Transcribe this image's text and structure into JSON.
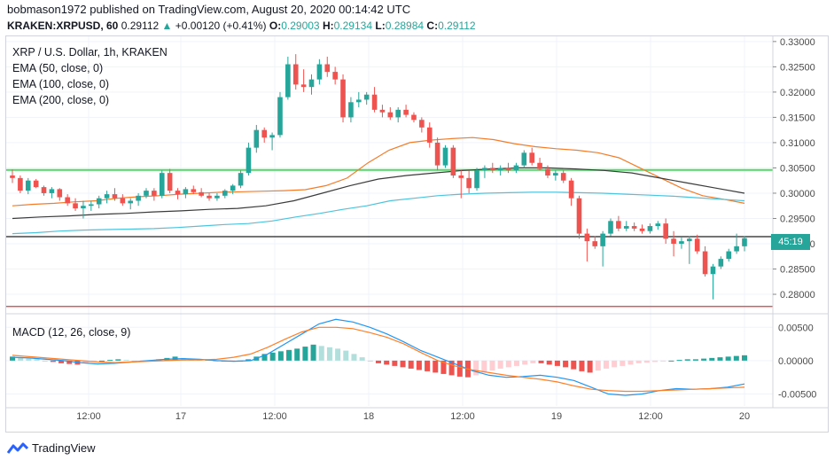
{
  "header": {
    "publisher_line": "bobmason1972 published on TradingView.com, August 20, 2020 00:14:42 UTC",
    "symbol": "KRAKEN:XRPUSD, 60",
    "last": "0.29112",
    "change_arrow": "▲",
    "change": "+0.00120 (+0.41%)",
    "o_label": "O:",
    "o": "0.29003",
    "h_label": "H:",
    "h": "0.29134",
    "l_label": "L:",
    "l": "0.28984",
    "c_label": "C:",
    "c": "0.29112"
  },
  "legend": {
    "title": "XRP / U.S. Dollar, 1h, KRAKEN",
    "ema50": "EMA (50, close, 0)",
    "ema100": "EMA (100, close, 0)",
    "ema200": "EMA (200, close, 0)"
  },
  "macd_legend": "MACD (12, 26, close, 9)",
  "price_tag": "45:19",
  "footer": {
    "brand": "TradingView"
  },
  "colors": {
    "up": "#26a69a",
    "down": "#ef5350",
    "ema50": "#f57c2a",
    "ema100": "#4dc3dc",
    "ema200": "#3b3b3b",
    "support_green": "#4cd964",
    "resistance_red": "#e53935",
    "current_line": "#222222",
    "macd_line": "#2196f3",
    "signal_line": "#ff7f27",
    "hist_up_strong": "#26a69a",
    "hist_up_weak": "#b2dfdb",
    "hist_down_strong": "#ef5350",
    "hist_down_weak": "#ffcdd2"
  },
  "chart_data": [
    {
      "type": "candlestick",
      "title": "XRP / U.S. Dollar, 1h, KRAKEN",
      "x_ticks": [
        "12:00",
        "17",
        "12:00",
        "18",
        "12:00",
        "19",
        "12:00",
        "20"
      ],
      "y_ticks": [
        "0.33000",
        "0.32500",
        "0.32000",
        "0.31500",
        "0.31000",
        "0.30500",
        "0.30000",
        "0.29500",
        "0.29000",
        "0.28500",
        "0.28000"
      ],
      "ylim": [
        0.2765,
        0.3305
      ],
      "horizontal_lines": [
        {
          "name": "support",
          "value": 0.3046,
          "color": "green"
        },
        {
          "name": "current",
          "value": 0.2914,
          "color": "black"
        },
        {
          "name": "lower",
          "value": 0.2776,
          "color": "red"
        }
      ],
      "candles": [
        [
          0.3035,
          0.3047,
          0.302,
          0.303
        ],
        [
          0.303,
          0.3035,
          0.3,
          0.3005
        ],
        [
          0.3005,
          0.303,
          0.2998,
          0.3025
        ],
        [
          0.3025,
          0.3028,
          0.301,
          0.3012
        ],
        [
          0.3012,
          0.3015,
          0.2995,
          0.3
        ],
        [
          0.3,
          0.3012,
          0.299,
          0.3008
        ],
        [
          0.3008,
          0.301,
          0.2985,
          0.2992
        ],
        [
          0.2992,
          0.2998,
          0.2975,
          0.298
        ],
        [
          0.298,
          0.299,
          0.2965,
          0.297
        ],
        [
          0.297,
          0.2985,
          0.295,
          0.2975
        ],
        [
          0.2975,
          0.2985,
          0.2965,
          0.2978
        ],
        [
          0.2978,
          0.2995,
          0.297,
          0.299
        ],
        [
          0.299,
          0.3005,
          0.298,
          0.2998
        ],
        [
          0.2998,
          0.301,
          0.2985,
          0.299
        ],
        [
          0.299,
          0.2998,
          0.2975,
          0.298
        ],
        [
          0.298,
          0.299,
          0.2968,
          0.2985
        ],
        [
          0.2985,
          0.3,
          0.2975,
          0.2995
        ],
        [
          0.2995,
          0.301,
          0.299,
          0.3005
        ],
        [
          0.3005,
          0.301,
          0.2985,
          0.2995
        ],
        [
          0.2995,
          0.3045,
          0.299,
          0.304
        ],
        [
          0.304,
          0.3048,
          0.3,
          0.3005
        ],
        [
          0.3005,
          0.301,
          0.2988,
          0.2998
        ],
        [
          0.2998,
          0.3012,
          0.299,
          0.3008
        ],
        [
          0.3008,
          0.3015,
          0.2998,
          0.3002
        ],
        [
          0.3002,
          0.301,
          0.2992,
          0.2995
        ],
        [
          0.2995,
          0.3,
          0.2985,
          0.299
        ],
        [
          0.299,
          0.3,
          0.2985,
          0.2995
        ],
        [
          0.2995,
          0.3008,
          0.299,
          0.3005
        ],
        [
          0.3005,
          0.3018,
          0.2998,
          0.3015
        ],
        [
          0.3015,
          0.3045,
          0.301,
          0.304
        ],
        [
          0.304,
          0.31,
          0.3035,
          0.309
        ],
        [
          0.309,
          0.3135,
          0.308,
          0.3125
        ],
        [
          0.3125,
          0.313,
          0.31,
          0.311
        ],
        [
          0.311,
          0.312,
          0.3085,
          0.3115
        ],
        [
          0.3115,
          0.32,
          0.311,
          0.319
        ],
        [
          0.319,
          0.327,
          0.3185,
          0.3255
        ],
        [
          0.3255,
          0.3275,
          0.3205,
          0.3215
        ],
        [
          0.3215,
          0.3245,
          0.32,
          0.321
        ],
        [
          0.321,
          0.3235,
          0.3195,
          0.3225
        ],
        [
          0.3225,
          0.3265,
          0.3215,
          0.3255
        ],
        [
          0.3255,
          0.327,
          0.323,
          0.324
        ],
        [
          0.324,
          0.325,
          0.3215,
          0.3225
        ],
        [
          0.3225,
          0.3235,
          0.314,
          0.315
        ],
        [
          0.315,
          0.319,
          0.314,
          0.318
        ],
        [
          0.318,
          0.32,
          0.317,
          0.3185
        ],
        [
          0.3185,
          0.32,
          0.3175,
          0.3195
        ],
        [
          0.3195,
          0.321,
          0.316,
          0.3165
        ],
        [
          0.3165,
          0.3175,
          0.315,
          0.316
        ],
        [
          0.316,
          0.317,
          0.3145,
          0.315
        ],
        [
          0.315,
          0.317,
          0.314,
          0.3165
        ],
        [
          0.3165,
          0.3175,
          0.315,
          0.3155
        ],
        [
          0.3155,
          0.316,
          0.314,
          0.3145
        ],
        [
          0.3145,
          0.315,
          0.312,
          0.313
        ],
        [
          0.313,
          0.314,
          0.309,
          0.31
        ],
        [
          0.31,
          0.311,
          0.3045,
          0.3055
        ],
        [
          0.3055,
          0.3095,
          0.305,
          0.309
        ],
        [
          0.309,
          0.3095,
          0.303,
          0.3035
        ],
        [
          0.3035,
          0.3045,
          0.299,
          0.303
        ],
        [
          0.303,
          0.3045,
          0.3,
          0.301
        ],
        [
          0.301,
          0.305,
          0.3005,
          0.3045
        ],
        [
          0.3045,
          0.3055,
          0.303,
          0.305
        ],
        [
          0.305,
          0.306,
          0.304,
          0.3045
        ],
        [
          0.3045,
          0.3055,
          0.3035,
          0.305
        ],
        [
          0.305,
          0.306,
          0.304,
          0.3045
        ],
        [
          0.3045,
          0.306,
          0.304,
          0.3055
        ],
        [
          0.3055,
          0.3085,
          0.305,
          0.308
        ],
        [
          0.308,
          0.309,
          0.3055,
          0.306
        ],
        [
          0.306,
          0.307,
          0.3045,
          0.3048
        ],
        [
          0.3048,
          0.3055,
          0.303,
          0.3035
        ],
        [
          0.3035,
          0.3045,
          0.3025,
          0.304
        ],
        [
          0.304,
          0.3045,
          0.302,
          0.3025
        ],
        [
          0.3025,
          0.303,
          0.2975,
          0.299
        ],
        [
          0.299,
          0.2995,
          0.291,
          0.292
        ],
        [
          0.292,
          0.293,
          0.2865,
          0.2905
        ],
        [
          0.2905,
          0.2915,
          0.289,
          0.2895
        ],
        [
          0.2895,
          0.2925,
          0.2855,
          0.292
        ],
        [
          0.292,
          0.295,
          0.2915,
          0.2945
        ],
        [
          0.2945,
          0.2955,
          0.2925,
          0.293
        ],
        [
          0.293,
          0.2945,
          0.2925,
          0.2935
        ],
        [
          0.2935,
          0.2942,
          0.2925,
          0.293
        ],
        [
          0.293,
          0.2938,
          0.292,
          0.2925
        ],
        [
          0.2925,
          0.294,
          0.292,
          0.2935
        ],
        [
          0.2935,
          0.2945,
          0.2928,
          0.294
        ],
        [
          0.294,
          0.295,
          0.29,
          0.291
        ],
        [
          0.291,
          0.2925,
          0.2875,
          0.29
        ],
        [
          0.29,
          0.2912,
          0.289,
          0.2905
        ],
        [
          0.2905,
          0.2915,
          0.286,
          0.291
        ],
        [
          0.291,
          0.2918,
          0.288,
          0.2885
        ],
        [
          0.2885,
          0.2895,
          0.2835,
          0.284
        ],
        [
          0.284,
          0.286,
          0.279,
          0.2855
        ],
        [
          0.2855,
          0.2875,
          0.285,
          0.287
        ],
        [
          0.287,
          0.289,
          0.2865,
          0.2885
        ],
        [
          0.2885,
          0.292,
          0.288,
          0.2895
        ],
        [
          0.2895,
          0.2915,
          0.2885,
          0.2911
        ]
      ],
      "series": [
        {
          "name": "EMA (50, close, 0)",
          "values": [
            0.2975,
            0.2978,
            0.298,
            0.2983,
            0.2985,
            0.299,
            0.2993,
            0.2995,
            0.2998,
            0.3,
            0.3002,
            0.3003,
            0.3004,
            0.3005,
            0.3007,
            0.3015,
            0.303,
            0.306,
            0.3085,
            0.31,
            0.3105,
            0.3108,
            0.311,
            0.3106,
            0.3098,
            0.3092,
            0.3088,
            0.3085,
            0.308,
            0.307,
            0.305,
            0.303,
            0.301,
            0.2995,
            0.2988,
            0.298
          ]
        },
        {
          "name": "EMA (100, close, 0)",
          "values": [
            0.292,
            0.2922,
            0.2925,
            0.2927,
            0.2928,
            0.2929,
            0.293,
            0.2932,
            0.2935,
            0.2938,
            0.294,
            0.2945,
            0.2953,
            0.296,
            0.2968,
            0.2975,
            0.2985,
            0.299,
            0.2995,
            0.2998,
            0.3,
            0.3001,
            0.3002,
            0.3002,
            0.3001,
            0.3,
            0.2998,
            0.2996,
            0.2994,
            0.2991,
            0.2988,
            0.2985
          ]
        },
        {
          "name": "EMA (200, close, 0)",
          "values": [
            0.295,
            0.2953,
            0.2955,
            0.2958,
            0.296,
            0.2963,
            0.2965,
            0.2968,
            0.297,
            0.2975,
            0.2985,
            0.3,
            0.3015,
            0.3028,
            0.3035,
            0.304,
            0.3045,
            0.3048,
            0.305,
            0.305,
            0.3048,
            0.3045,
            0.304,
            0.303,
            0.302,
            0.301,
            0.3
          ]
        }
      ]
    },
    {
      "type": "bar",
      "title": "MACD (12, 26, close, 9)",
      "y_ticks": [
        "0.00500",
        "0.00000",
        "-0.00500"
      ],
      "ylim": [
        -0.0068,
        0.0065
      ],
      "histogram": [
        0.0006,
        0.0004,
        0.0003,
        0.0002,
        0,
        -0.0002,
        -0.0004,
        -0.0005,
        -0.0006,
        -0.0004,
        -0.0002,
        0,
        0.0001,
        0.0002,
        0.0001,
        0,
        -0.0001,
        0,
        0.0002,
        0.0004,
        0.0006,
        0.0004,
        0.0003,
        0.0002,
        0.0002,
        0,
        -0.0001,
        -0.0001,
        0,
        0.0002,
        0.0006,
        0.001,
        0.0012,
        0.0014,
        0.0016,
        0.0018,
        0.0021,
        0.0024,
        0.0022,
        0.002,
        0.0018,
        0.0015,
        0.001,
        0.0005,
        0,
        -0.0004,
        -0.0006,
        -0.0008,
        -0.001,
        -0.0012,
        -0.0014,
        -0.0016,
        -0.0018,
        -0.002,
        -0.0022,
        -0.0024,
        -0.0025,
        -0.0022,
        -0.0018,
        -0.0015,
        -0.0012,
        -0.001,
        -0.0008,
        -0.0006,
        -0.0004,
        -0.0004,
        -0.0006,
        -0.0008,
        -0.001,
        -0.0013,
        -0.0016,
        -0.0018,
        -0.0015,
        -0.0012,
        -0.001,
        -0.0008,
        -0.0006,
        -0.0004,
        -0.0003,
        -0.0002,
        -0.0001,
        0,
        0.0001,
        0.0002,
        0.0002,
        0.0003,
        0.0004,
        0.0005,
        0.0006,
        0.0007,
        0.0008
      ],
      "series": [
        {
          "name": "MACD",
          "values": [
            0.0005,
            0.0004,
            0.0002,
            0.0,
            -0.0003,
            -0.0005,
            -0.0004,
            -0.0002,
            0.0,
            0.0002,
            0.0003,
            0.0002,
            0.0,
            -0.0001,
            0.0,
            0.001,
            0.0025,
            0.004,
            0.0055,
            0.0062,
            0.0058,
            0.005,
            0.004,
            0.0028,
            0.0015,
            0.0005,
            -0.0005,
            -0.0015,
            -0.0022,
            -0.0025,
            -0.0024,
            -0.0022,
            -0.0025,
            -0.003,
            -0.004,
            -0.005,
            -0.0052,
            -0.005,
            -0.0045,
            -0.0042,
            -0.0043,
            -0.0042,
            -0.004,
            -0.0035
          ]
        },
        {
          "name": "Signal",
          "values": [
            0.0008,
            0.0006,
            0.0004,
            0.0002,
            0.0,
            -0.0002,
            -0.0003,
            -0.0002,
            -0.0001,
            0.0,
            0.0001,
            0.0001,
            0.0002,
            0.0005,
            0.001,
            0.002,
            0.0032,
            0.0043,
            0.005,
            0.005,
            0.0048,
            0.0042,
            0.0035,
            0.0025,
            0.0012,
            0.0,
            -0.0008,
            -0.0014,
            -0.0018,
            -0.0022,
            -0.0025,
            -0.0028,
            -0.0032,
            -0.0038,
            -0.0043,
            -0.0045,
            -0.0046,
            -0.0046,
            -0.0045,
            -0.0044,
            -0.0043,
            -0.0042,
            -0.0041,
            -0.004
          ]
        }
      ]
    }
  ]
}
